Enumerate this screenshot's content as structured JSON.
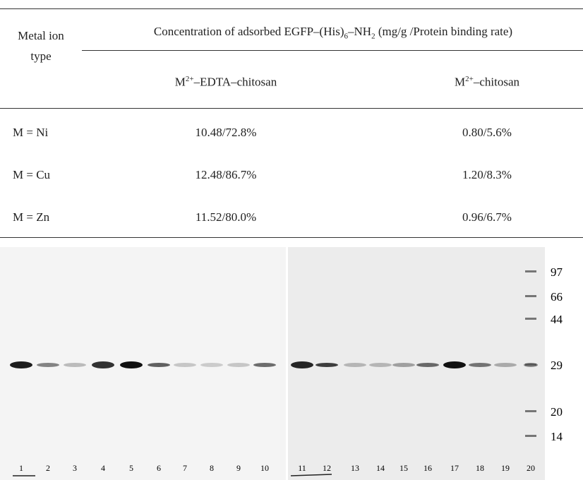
{
  "table": {
    "row_header": "Metal ion type",
    "group_header": [
      "Concentration of adsorbed EGFP–(His)",
      "6",
      "–NH",
      "2",
      " (mg/g /Protein binding rate)"
    ],
    "columns": [
      [
        "M",
        "2+",
        "–EDTA–chitosan"
      ],
      [
        "M",
        "2+",
        "–chitosan"
      ]
    ],
    "rows": [
      [
        "M = Ni",
        "10.48/72.8%",
        "0.80/5.6%"
      ],
      [
        "M = Cu",
        "12.48/86.7%",
        "1.20/8.3%"
      ],
      [
        "M = Zn",
        "11.52/80.0%",
        "0.96/6.7%"
      ]
    ]
  },
  "gel": {
    "lanes": [
      "1",
      "2",
      "3",
      "4",
      "5",
      "6",
      "7",
      "8",
      "9",
      "10",
      "11",
      "12",
      "13",
      "14",
      "15",
      "16",
      "17",
      "18",
      "19",
      "20"
    ],
    "markers": [
      "97",
      "66",
      "44",
      "29",
      "20",
      "14"
    ]
  }
}
